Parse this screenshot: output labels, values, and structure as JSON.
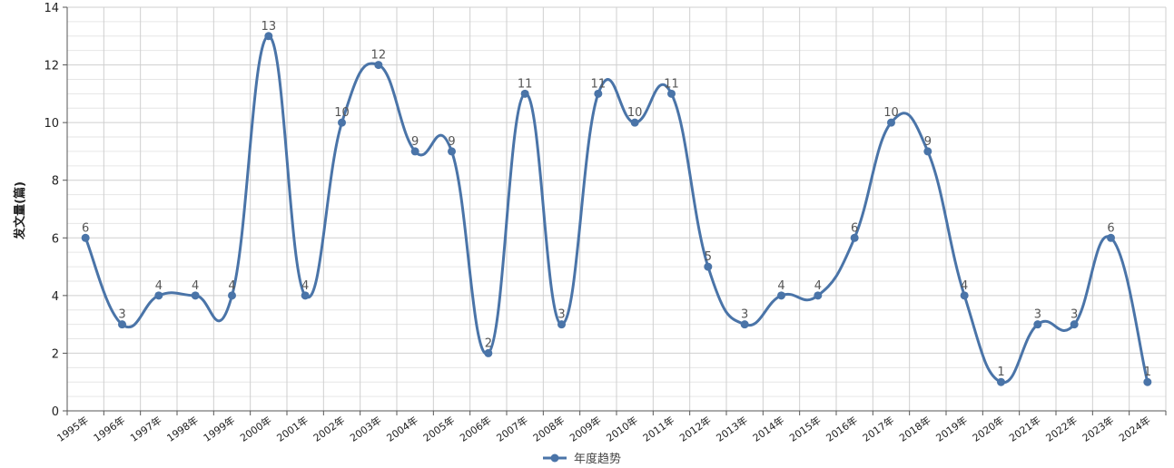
{
  "chart_data": {
    "type": "line",
    "categories": [
      "1995年",
      "1996年",
      "1997年",
      "1998年",
      "1999年",
      "2000年",
      "2001年",
      "2002年",
      "2003年",
      "2004年",
      "2005年",
      "2006年",
      "2007年",
      "2008年",
      "2009年",
      "2010年",
      "2011年",
      "2012年",
      "2013年",
      "2014年",
      "2015年",
      "2016年",
      "2017年",
      "2018年",
      "2019年",
      "2020年",
      "2021年",
      "2022年",
      "2023年",
      "2024年"
    ],
    "series": [
      {
        "name": "年度趋势",
        "values": [
          6,
          3,
          4,
          4,
          4,
          13,
          4,
          10,
          12,
          9,
          9,
          2,
          11,
          3,
          11,
          10,
          11,
          5,
          3,
          4,
          4,
          6,
          10,
          9,
          4,
          1,
          3,
          3,
          6,
          1
        ]
      }
    ],
    "ylabel": "发文量(篇)",
    "ylim": [
      0,
      14
    ],
    "yticks": [
      0,
      2,
      4,
      6,
      8,
      10,
      12,
      14
    ],
    "grid": true,
    "smooth": true,
    "data_labels": true,
    "legend_position": "bottom-center",
    "colors": {
      "line": "#4a74a8",
      "grid_major": "#cfcfcf",
      "grid_minor": "#e6e6e6",
      "axis": "#555555"
    }
  }
}
